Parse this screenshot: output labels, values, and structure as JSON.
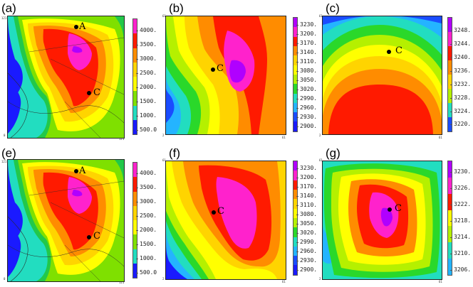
{
  "panels": [
    {
      "label": "(a)",
      "ticks": [
        "4000.",
        "3500.",
        "3000.",
        "2500.",
        "2000.",
        "1500.",
        "1000.",
        "500.0"
      ],
      "axis_top": "121",
      "axis_bottom": "0",
      "axis_right": "121",
      "points": [
        "A",
        "C"
      ]
    },
    {
      "label": "(b)",
      "ticks": [
        "3230.",
        "3200.",
        "3170.",
        "3140.",
        "3110.",
        "3080.",
        "3050.",
        "3020.",
        "2990.",
        "2960.",
        "2930.",
        "2900."
      ],
      "axis_top": "61",
      "axis_bottom": "2",
      "axis_right": "61",
      "points": [
        "C"
      ]
    },
    {
      "label": "(c)",
      "ticks": [
        "3248.",
        "3244.",
        "3240.",
        "3236.",
        "3232.",
        "3228.",
        "3224.",
        "3220."
      ],
      "axis_top": "61",
      "axis_bottom": "2",
      "axis_right": "61",
      "points": [
        "C"
      ]
    },
    {
      "label": "(e)",
      "ticks": [
        "4000.",
        "3500.",
        "3000.",
        "2500.",
        "2000.",
        "1500.",
        "1000.",
        "500.0"
      ],
      "axis_top": "121",
      "axis_bottom": "0",
      "axis_right": "121",
      "points": [
        "A",
        "C"
      ]
    },
    {
      "label": "(f)",
      "ticks": [
        "3230.",
        "3200.",
        "3170.",
        "3140.",
        "3110.",
        "3080.",
        "3050.",
        "3020.",
        "2990.",
        "2960.",
        "2930.",
        "2900."
      ],
      "axis_top": "61",
      "axis_bottom": "2",
      "axis_right": "61",
      "points": [
        "C"
      ]
    },
    {
      "label": "(g)",
      "ticks": [
        "3230.",
        "3226.",
        "3222.",
        "3218.",
        "3214.",
        "3210.",
        "3206."
      ],
      "axis_top": "61",
      "axis_bottom": "2",
      "axis_right": "61",
      "points": [
        "C"
      ]
    }
  ],
  "colors": {
    "palette": [
      "#b000ff",
      "#ff22cc",
      "#ff1a00",
      "#ff8c00",
      "#ffd400",
      "#ffff00",
      "#b5f000",
      "#2ad82a",
      "#22ddc0",
      "#24b4ff",
      "#1a4cff",
      "#1a1aff"
    ],
    "topo_palette": [
      "#ff22cc",
      "#ff1a00",
      "#ff8c00",
      "#ffd400",
      "#ffff00",
      "#7fe000",
      "#22c84a",
      "#22ddc0",
      "#1a1aff"
    ],
    "coast": "#2a2a2a"
  }
}
